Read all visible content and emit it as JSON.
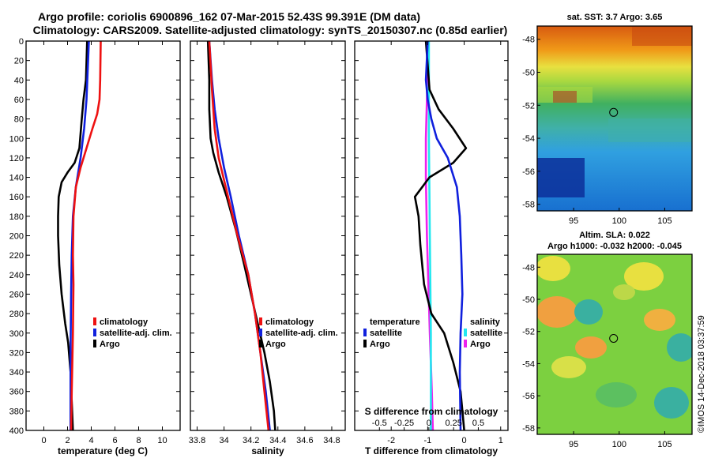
{
  "title": {
    "line1": "Argo profile: coriolis 6900896_162 07-Mar-2015 52.43S 99.391E (DM data)",
    "line2": "Climatology: CARS2009. Satellite-adjusted climatology: synTS_20150307.nc (0.85d earlier)"
  },
  "colors": {
    "climatology": "#ee1111",
    "satellite": "#1020dd",
    "argo": "#000000",
    "sal_satellite": "#22e8f0",
    "sal_argo": "#ee22ee"
  },
  "chart_data": [
    {
      "type": "line",
      "name": "temperature-profile",
      "xlabel": "temperature (deg C)",
      "ylabel": "",
      "xlim": [
        -1.5,
        11.5
      ],
      "ylim": [
        400,
        0
      ],
      "xticks": [
        "0",
        "2",
        "4",
        "6",
        "8",
        "10"
      ],
      "yticks": [
        "0",
        "20",
        "40",
        "60",
        "80",
        "100",
        "120",
        "140",
        "160",
        "180",
        "200",
        "220",
        "240",
        "260",
        "280",
        "300",
        "320",
        "340",
        "360",
        "380",
        "400"
      ],
      "legend_position": "lower-right",
      "series": [
        {
          "name": "climatology",
          "color": "#ee1111",
          "values": [
            [
              4.8,
              0
            ],
            [
              4.75,
              40
            ],
            [
              4.7,
              60
            ],
            [
              4.5,
              75
            ],
            [
              4.1,
              90
            ],
            [
              3.6,
              110
            ],
            [
              3.1,
              130
            ],
            [
              2.7,
              150
            ],
            [
              2.5,
              180
            ],
            [
              2.45,
              220
            ],
            [
              2.5,
              250
            ],
            [
              2.45,
              300
            ],
            [
              2.35,
              360
            ],
            [
              2.3,
              400
            ]
          ]
        },
        {
          "name": "satellite-adj. clim.",
          "color": "#1020dd",
          "values": [
            [
              3.8,
              0
            ],
            [
              3.7,
              30
            ],
            [
              3.6,
              60
            ],
            [
              3.4,
              90
            ],
            [
              3.1,
              120
            ],
            [
              2.7,
              150
            ],
            [
              2.45,
              180
            ],
            [
              2.35,
              220
            ],
            [
              2.3,
              260
            ],
            [
              2.25,
              320
            ],
            [
              2.25,
              400
            ]
          ]
        },
        {
          "name": "Argo",
          "color": "#000000",
          "values": [
            [
              3.65,
              0
            ],
            [
              3.55,
              40
            ],
            [
              3.35,
              60
            ],
            [
              3.2,
              80
            ],
            [
              3.0,
              110
            ],
            [
              2.6,
              125
            ],
            [
              2.0,
              135
            ],
            [
              1.5,
              145
            ],
            [
              1.25,
              160
            ],
            [
              1.2,
              180
            ],
            [
              1.2,
              200
            ],
            [
              1.3,
              230
            ],
            [
              1.5,
              260
            ],
            [
              1.8,
              290
            ],
            [
              2.05,
              310
            ],
            [
              2.25,
              340
            ],
            [
              2.35,
              370
            ],
            [
              2.45,
              400
            ]
          ]
        }
      ]
    },
    {
      "type": "line",
      "name": "salinity-profile",
      "xlabel": "salinity",
      "ylabel": "",
      "xlim": [
        33.75,
        34.9
      ],
      "ylim": [
        400,
        0
      ],
      "xticks": [
        "33.8",
        "34",
        "34.2",
        "34.4",
        "34.6",
        "34.8"
      ],
      "legend_position": "lower-right",
      "series": [
        {
          "name": "climatology",
          "color": "#ee1111",
          "values": [
            [
              33.89,
              0
            ],
            [
              33.91,
              50
            ],
            [
              33.93,
              90
            ],
            [
              33.96,
              120
            ],
            [
              34.03,
              160
            ],
            [
              34.1,
              200
            ],
            [
              34.18,
              240
            ],
            [
              34.23,
              280
            ],
            [
              34.27,
              320
            ],
            [
              34.3,
              360
            ],
            [
              34.33,
              400
            ]
          ]
        },
        {
          "name": "satellite-adj. clim.",
          "color": "#1020dd",
          "values": [
            [
              33.89,
              0
            ],
            [
              33.91,
              40
            ],
            [
              33.93,
              70
            ],
            [
              33.96,
              100
            ],
            [
              34.0,
              130
            ],
            [
              34.05,
              160
            ],
            [
              34.11,
              200
            ],
            [
              34.18,
              240
            ],
            [
              34.23,
              280
            ],
            [
              34.27,
              320
            ],
            [
              34.31,
              360
            ],
            [
              34.34,
              400
            ]
          ]
        },
        {
          "name": "Argo",
          "color": "#000000",
          "values": [
            [
              33.88,
              0
            ],
            [
              33.89,
              40
            ],
            [
              33.89,
              70
            ],
            [
              33.9,
              100
            ],
            [
              33.92,
              115
            ],
            [
              33.96,
              135
            ],
            [
              34.02,
              160
            ],
            [
              34.09,
              195
            ],
            [
              34.15,
              230
            ],
            [
              34.2,
              260
            ],
            [
              34.25,
              290
            ],
            [
              34.3,
              320
            ],
            [
              34.34,
              350
            ],
            [
              34.37,
              380
            ],
            [
              34.38,
              400
            ]
          ]
        }
      ]
    },
    {
      "type": "line",
      "name": "difference-profile",
      "xlabel": "T difference from climatology",
      "ylabel": "",
      "xlim": [
        -3.0,
        1.2
      ],
      "ylim": [
        400,
        0
      ],
      "xticks": [
        "-2",
        "-1",
        "0",
        "1"
      ],
      "top_axis": {
        "label": "S difference from climatology",
        "xlim": [
          -0.75,
          0.8
        ],
        "xticks": [
          "-0.5",
          "-0.25",
          "0",
          "0.25",
          "0.5"
        ]
      },
      "legend_groups": [
        {
          "title": "temperature",
          "position": "lower-left",
          "entries": [
            "satellite",
            "Argo"
          ]
        },
        {
          "title": "salinity",
          "position": "lower-right",
          "entries": [
            "satellite",
            "Argo"
          ]
        }
      ],
      "series": [
        {
          "name": "temperature satellite",
          "color": "#1020dd",
          "axis": "T",
          "values": [
            [
              -1.0,
              0
            ],
            [
              -1.05,
              40
            ],
            [
              -1.0,
              60
            ],
            [
              -0.9,
              80
            ],
            [
              -0.75,
              100
            ],
            [
              -0.45,
              120
            ],
            [
              -0.2,
              150
            ],
            [
              -0.12,
              180
            ],
            [
              -0.08,
              220
            ],
            [
              -0.05,
              260
            ],
            [
              -0.1,
              300
            ],
            [
              -0.12,
              340
            ],
            [
              -0.1,
              400
            ]
          ]
        },
        {
          "name": "temperature Argo",
          "color": "#000000",
          "axis": "T",
          "values": [
            [
              -1.05,
              0
            ],
            [
              -0.95,
              50
            ],
            [
              -0.7,
              70
            ],
            [
              -0.3,
              90
            ],
            [
              0.05,
              110
            ],
            [
              -0.3,
              125
            ],
            [
              -0.95,
              140
            ],
            [
              -1.35,
              160
            ],
            [
              -1.25,
              180
            ],
            [
              -1.2,
              210
            ],
            [
              -1.1,
              250
            ],
            [
              -0.9,
              280
            ],
            [
              -0.55,
              300
            ],
            [
              -0.3,
              330
            ],
            [
              -0.1,
              360
            ],
            [
              0.0,
              400
            ]
          ]
        },
        {
          "name": "salinity satellite",
          "color": "#22e8f0",
          "axis": "S",
          "values": [
            [
              0.0,
              0
            ],
            [
              0.0,
              100
            ],
            [
              0.01,
              200
            ],
            [
              0.02,
              300
            ],
            [
              0.02,
              400
            ]
          ]
        },
        {
          "name": "salinity Argo",
          "color": "#ee22ee",
          "axis": "S",
          "values": [
            [
              -0.01,
              0
            ],
            [
              -0.02,
              60
            ],
            [
              -0.03,
              100
            ],
            [
              -0.03,
              140
            ],
            [
              -0.02,
              200
            ],
            [
              0.01,
              300
            ],
            [
              0.03,
              360
            ],
            [
              0.04,
              400
            ]
          ]
        }
      ]
    }
  ],
  "maps": {
    "sst": {
      "title": "sat. SST: 3.7 Argo: 3.65",
      "yticks": [
        "-48",
        "-50",
        "-52",
        "-54",
        "-56",
        "-58"
      ],
      "xticks": [
        "95",
        "100",
        "105"
      ],
      "marker_lon": 99.391,
      "marker_lat": -52.43
    },
    "sla": {
      "title_line1": "Altim. SLA: 0.022",
      "title_line2": "Argo h1000: -0.032 h2000: -0.045",
      "yticks": [
        "-48",
        "-50",
        "-52",
        "-54",
        "-56",
        "-58"
      ],
      "xticks": [
        "95",
        "100",
        "105"
      ],
      "marker_lon": 99.391,
      "marker_lat": -52.43
    }
  },
  "credit": "©IMOS 14-Dec-2018 03:37:59"
}
